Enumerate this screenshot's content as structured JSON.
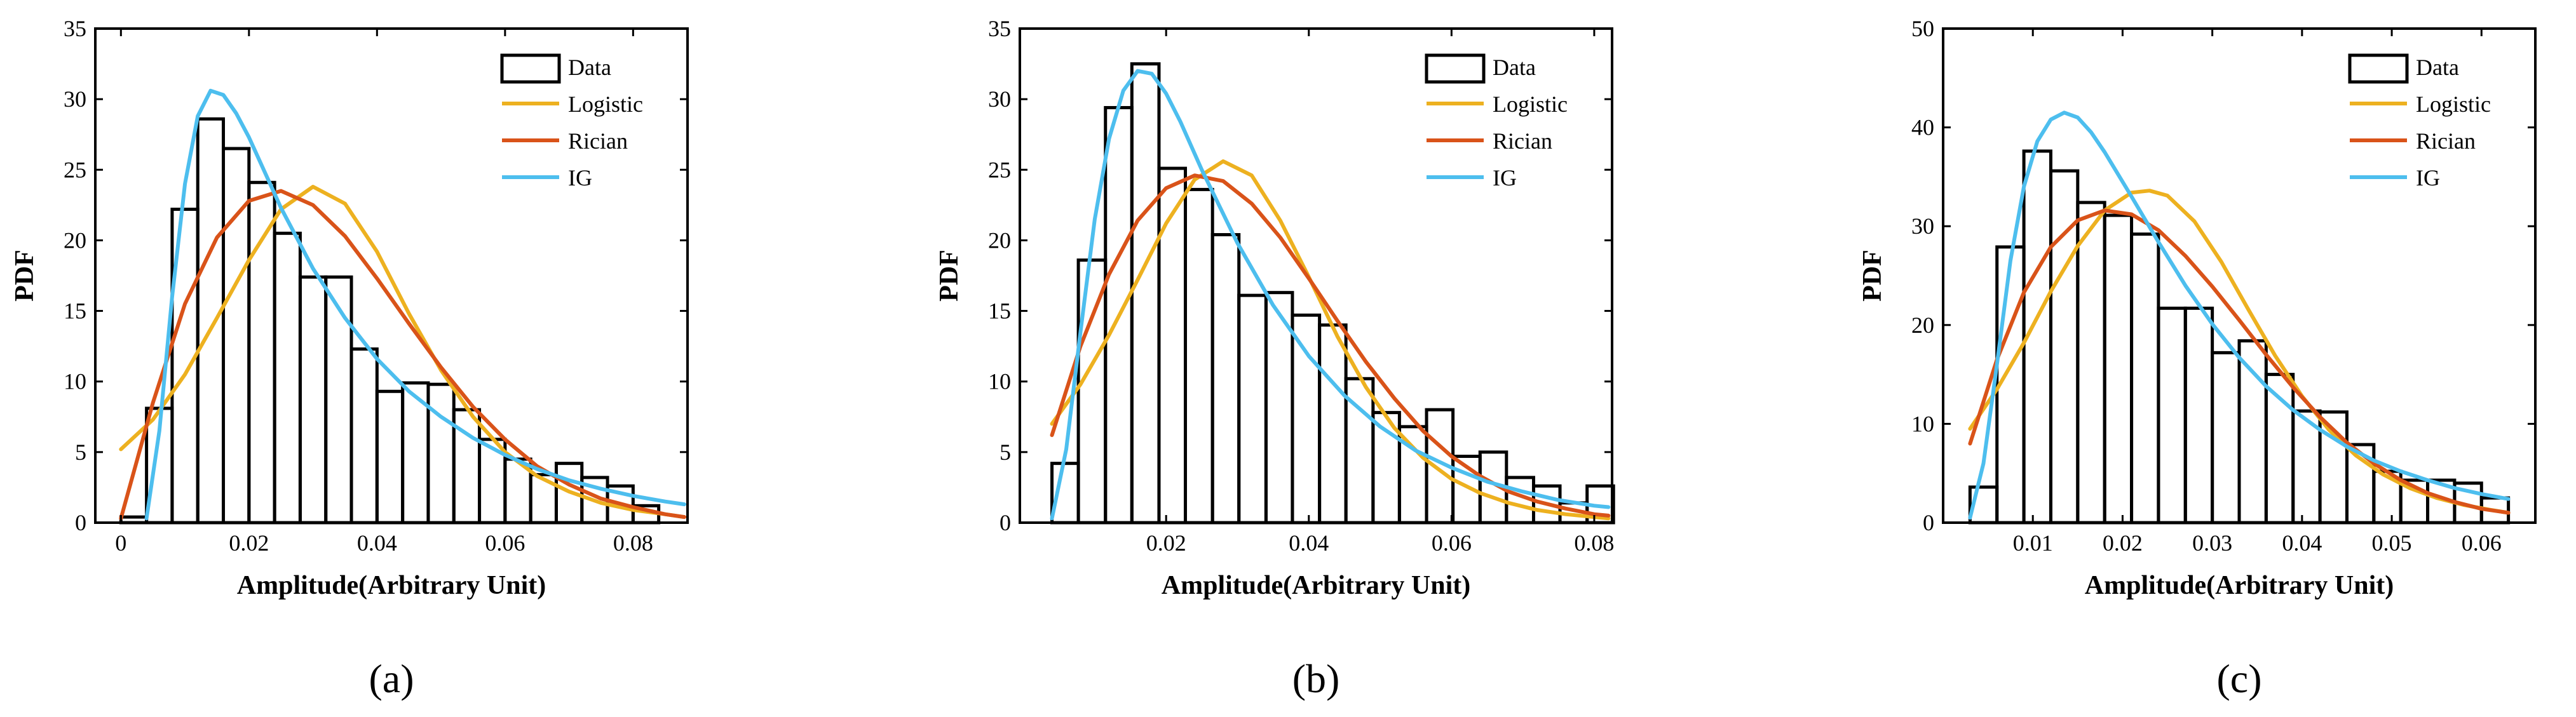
{
  "chart_data": [
    {
      "type": "histogram-with-fits",
      "panel_label": "(a)",
      "xlabel": "Amplitude(Arbitrary Unit)",
      "ylabel": "PDF",
      "xlim": [
        -0.004,
        0.0885
      ],
      "ylim": [
        0,
        35
      ],
      "xticks": [
        0,
        0.02,
        0.04,
        0.06,
        0.08
      ],
      "xtick_labels": [
        "0",
        "0.02",
        "0.04",
        "0.06",
        "0.08"
      ],
      "yticks": [
        0,
        5,
        10,
        15,
        20,
        25,
        30,
        35
      ],
      "ytick_labels": [
        "0",
        "5",
        "10",
        "15",
        "20",
        "25",
        "30",
        "35"
      ],
      "legend": {
        "position": "top-right",
        "entries": [
          "Data",
          "Logistic",
          "Rician",
          "IG"
        ]
      },
      "bins": {
        "edges": [
          0.0,
          0.004,
          0.008,
          0.012,
          0.016,
          0.02,
          0.024,
          0.028,
          0.032,
          0.036,
          0.04,
          0.044,
          0.048,
          0.052,
          0.056,
          0.06,
          0.064,
          0.068,
          0.072,
          0.076,
          0.08,
          0.084,
          0.088
        ],
        "values": [
          0.4,
          8.1,
          22.2,
          28.6,
          26.5,
          24.1,
          20.5,
          17.4,
          17.4,
          12.3,
          9.3,
          9.9,
          9.8,
          8.0,
          5.9,
          4.5,
          3.4,
          4.2,
          3.2,
          2.6,
          1.2,
          0
        ]
      },
      "series": [
        {
          "name": "Logistic",
          "color": "#EDB120",
          "x": [
            0.0,
            0.005,
            0.01,
            0.015,
            0.02,
            0.025,
            0.03,
            0.035,
            0.04,
            0.045,
            0.05,
            0.055,
            0.06,
            0.065,
            0.07,
            0.075,
            0.08,
            0.085,
            0.088
          ],
          "y": [
            5.2,
            7.3,
            10.5,
            14.5,
            18.6,
            22.2,
            23.8,
            22.6,
            19.2,
            14.8,
            10.8,
            7.5,
            5.0,
            3.3,
            2.2,
            1.4,
            0.9,
            0.6,
            0.4
          ]
        },
        {
          "name": "Rician",
          "color": "#D95319",
          "x": [
            0.0,
            0.005,
            0.01,
            0.015,
            0.02,
            0.025,
            0.03,
            0.035,
            0.04,
            0.045,
            0.05,
            0.055,
            0.06,
            0.065,
            0.07,
            0.075,
            0.08,
            0.085,
            0.088
          ],
          "y": [
            0.3,
            8.5,
            15.5,
            20.2,
            22.8,
            23.5,
            22.5,
            20.3,
            17.3,
            14.1,
            11.0,
            8.2,
            5.9,
            4.0,
            2.7,
            1.7,
            1.1,
            0.6,
            0.4
          ]
        },
        {
          "name": "IG",
          "color": "#4DBEEE",
          "x": [
            0.004,
            0.006,
            0.008,
            0.01,
            0.012,
            0.014,
            0.016,
            0.018,
            0.02,
            0.025,
            0.03,
            0.035,
            0.04,
            0.045,
            0.05,
            0.055,
            0.06,
            0.065,
            0.07,
            0.075,
            0.08,
            0.085,
            0.088
          ],
          "y": [
            0.3,
            6.5,
            16.0,
            24.0,
            28.8,
            30.6,
            30.3,
            29.0,
            27.3,
            22.3,
            18.0,
            14.5,
            11.6,
            9.3,
            7.5,
            6.0,
            4.8,
            3.8,
            3.0,
            2.4,
            1.9,
            1.5,
            1.3
          ]
        }
      ]
    },
    {
      "type": "histogram-with-fits",
      "panel_label": "(b)",
      "xlabel": "Amplitude(Arbitrary Unit)",
      "ylabel": "PDF",
      "xlim": [
        -0.0005,
        0.0825
      ],
      "ylim": [
        0,
        35
      ],
      "xticks": [
        0.02,
        0.04,
        0.06,
        0.08
      ],
      "xtick_labels": [
        "0.02",
        "0.04",
        "0.06",
        "0.08"
      ],
      "yticks": [
        0,
        5,
        10,
        15,
        20,
        25,
        30,
        35
      ],
      "ytick_labels": [
        "0",
        "5",
        "10",
        "15",
        "20",
        "25",
        "30",
        "35"
      ],
      "legend": {
        "position": "top-right",
        "entries": [
          "Data",
          "Logistic",
          "Rician",
          "IG"
        ]
      },
      "bins": {
        "edges": [
          0.004,
          0.0077,
          0.0115,
          0.0152,
          0.019,
          0.0227,
          0.0265,
          0.0302,
          0.034,
          0.0377,
          0.0415,
          0.0452,
          0.049,
          0.0527,
          0.0565,
          0.0602,
          0.064,
          0.0677,
          0.0715,
          0.0752,
          0.079,
          0.0827
        ],
        "values": [
          4.2,
          18.6,
          29.4,
          32.5,
          25.1,
          23.6,
          20.4,
          16.1,
          16.3,
          14.7,
          14.0,
          10.2,
          7.8,
          6.8,
          8.0,
          4.7,
          5.0,
          3.2,
          2.6,
          1.4,
          2.6
        ]
      },
      "series": [
        {
          "name": "Logistic",
          "color": "#EDB120",
          "x": [
            0.004,
            0.008,
            0.012,
            0.016,
            0.02,
            0.024,
            0.028,
            0.032,
            0.036,
            0.04,
            0.044,
            0.048,
            0.052,
            0.056,
            0.06,
            0.064,
            0.068,
            0.072,
            0.076,
            0.08,
            0.082
          ],
          "y": [
            7.0,
            9.8,
            13.3,
            17.2,
            21.2,
            24.3,
            25.6,
            24.6,
            21.4,
            17.4,
            13.2,
            9.6,
            6.7,
            4.6,
            3.1,
            2.1,
            1.4,
            0.9,
            0.6,
            0.4,
            0.3
          ]
        },
        {
          "name": "Rician",
          "color": "#D95319",
          "x": [
            0.004,
            0.008,
            0.012,
            0.016,
            0.02,
            0.024,
            0.028,
            0.032,
            0.036,
            0.04,
            0.044,
            0.048,
            0.052,
            0.056,
            0.06,
            0.064,
            0.068,
            0.072,
            0.076,
            0.08,
            0.082
          ],
          "y": [
            6.2,
            12.5,
            17.6,
            21.4,
            23.7,
            24.6,
            24.2,
            22.6,
            20.2,
            17.3,
            14.3,
            11.4,
            8.8,
            6.5,
            4.7,
            3.3,
            2.2,
            1.5,
            1.0,
            0.6,
            0.5
          ]
        },
        {
          "name": "IG",
          "color": "#4DBEEE",
          "x": [
            0.004,
            0.006,
            0.008,
            0.01,
            0.012,
            0.014,
            0.016,
            0.018,
            0.02,
            0.022,
            0.025,
            0.03,
            0.035,
            0.04,
            0.045,
            0.05,
            0.055,
            0.06,
            0.065,
            0.07,
            0.075,
            0.08,
            0.082
          ],
          "y": [
            0.3,
            5.2,
            13.5,
            21.5,
            27.2,
            30.6,
            32.0,
            31.8,
            30.4,
            28.4,
            25.0,
            19.8,
            15.4,
            11.8,
            9.0,
            6.8,
            5.1,
            3.9,
            2.9,
            2.2,
            1.6,
            1.2,
            1.1
          ]
        }
      ]
    },
    {
      "type": "histogram-with-fits",
      "panel_label": "(c)",
      "xlabel": "Amplitude(Arbitrary Unit)",
      "ylabel": "PDF",
      "xlim": [
        0.0,
        0.066
      ],
      "ylim": [
        0,
        50
      ],
      "xticks": [
        0.01,
        0.02,
        0.03,
        0.04,
        0.05,
        0.06
      ],
      "xtick_labels": [
        "0.01",
        "0.02",
        "0.03",
        "0.04",
        "0.05",
        "0.06"
      ],
      "yticks": [
        0,
        10,
        20,
        30,
        40,
        50
      ],
      "ytick_labels": [
        "0",
        "10",
        "20",
        "30",
        "40",
        "50"
      ],
      "legend": {
        "position": "top-right",
        "entries": [
          "Data",
          "Logistic",
          "Rician",
          "IG"
        ]
      },
      "bins": {
        "edges": [
          0.003,
          0.006,
          0.009,
          0.012,
          0.015,
          0.018,
          0.021,
          0.024,
          0.027,
          0.03,
          0.033,
          0.036,
          0.039,
          0.042,
          0.045,
          0.048,
          0.051,
          0.054,
          0.057,
          0.06,
          0.063
        ],
        "values": [
          3.6,
          27.9,
          37.6,
          35.6,
          32.4,
          31.1,
          29.2,
          21.7,
          21.7,
          17.2,
          18.4,
          15.0,
          11.3,
          11.2,
          7.9,
          5.2,
          4.3,
          4.3,
          4.0,
          2.5
        ]
      },
      "series": [
        {
          "name": "Logistic",
          "color": "#EDB120",
          "x": [
            0.003,
            0.006,
            0.009,
            0.012,
            0.015,
            0.018,
            0.021,
            0.023,
            0.025,
            0.028,
            0.031,
            0.034,
            0.037,
            0.04,
            0.043,
            0.046,
            0.049,
            0.052,
            0.055,
            0.058,
            0.061,
            0.063
          ],
          "y": [
            9.5,
            13.5,
            18.2,
            23.4,
            28.0,
            31.6,
            33.4,
            33.6,
            33.1,
            30.5,
            26.4,
            21.6,
            16.9,
            12.8,
            9.4,
            6.8,
            4.9,
            3.5,
            2.5,
            1.8,
            1.3,
            1.0
          ]
        },
        {
          "name": "Rician",
          "color": "#D95319",
          "x": [
            0.003,
            0.006,
            0.009,
            0.012,
            0.015,
            0.018,
            0.021,
            0.024,
            0.027,
            0.03,
            0.033,
            0.036,
            0.039,
            0.042,
            0.045,
            0.048,
            0.051,
            0.054,
            0.057,
            0.06,
            0.063
          ],
          "y": [
            8.0,
            16.5,
            23.3,
            27.9,
            30.6,
            31.6,
            31.2,
            29.6,
            27.0,
            23.9,
            20.5,
            17.0,
            13.7,
            10.7,
            8.1,
            6.0,
            4.3,
            3.0,
            2.1,
            1.4,
            1.0
          ]
        },
        {
          "name": "IG",
          "color": "#4DBEEE",
          "x": [
            0.003,
            0.0045,
            0.006,
            0.0075,
            0.009,
            0.0105,
            0.012,
            0.0135,
            0.015,
            0.0165,
            0.018,
            0.021,
            0.024,
            0.027,
            0.03,
            0.033,
            0.036,
            0.039,
            0.042,
            0.045,
            0.048,
            0.051,
            0.054,
            0.057,
            0.06,
            0.063
          ],
          "y": [
            0.5,
            6.0,
            16.0,
            26.5,
            34.0,
            38.6,
            40.8,
            41.5,
            41.0,
            39.5,
            37.5,
            33.0,
            28.4,
            24.0,
            20.1,
            16.7,
            13.8,
            11.4,
            9.4,
            7.7,
            6.3,
            5.2,
            4.3,
            3.5,
            2.9,
            2.4
          ]
        }
      ]
    }
  ]
}
